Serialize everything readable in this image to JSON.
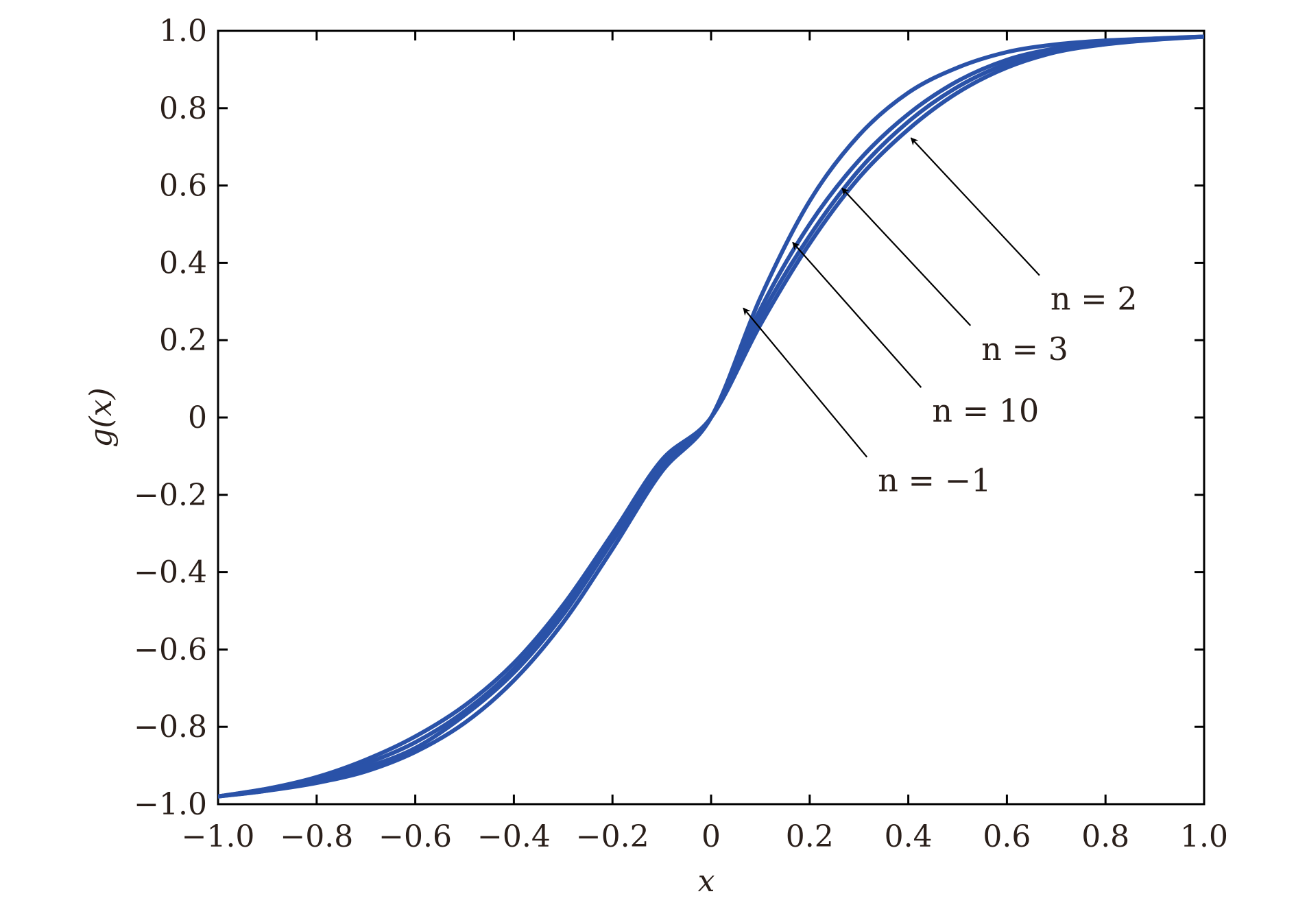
{
  "chart_data": {
    "type": "line",
    "title": "",
    "xlabel": "x",
    "ylabel": "g(x)",
    "xlim": [
      -1.0,
      1.0
    ],
    "ylim": [
      -1.0,
      1.0
    ],
    "grid": false,
    "x_ticks": [
      -1.0,
      -0.8,
      -0.6,
      -0.4,
      -0.2,
      0,
      0.2,
      0.4,
      0.6,
      0.8,
      1.0
    ],
    "x_tick_labels": [
      "−1.0",
      "−0.8",
      "−0.6",
      "−0.4",
      "−0.2",
      "0",
      "0.2",
      "0.4",
      "0.6",
      "0.8",
      "1.0"
    ],
    "y_ticks": [
      1.0,
      0.8,
      0.6,
      0.4,
      0.2,
      0,
      -0.2,
      -0.4,
      -0.6,
      -0.8,
      -1.0
    ],
    "y_tick_labels": [
      "1.0",
      "0.8",
      "0.6",
      "0.4",
      "0.2",
      "0",
      "−0.2",
      "−0.4",
      "−0.6",
      "−0.8",
      "−1.0"
    ],
    "line_color": "#2a52a8",
    "x": [
      -1.0,
      -0.9,
      -0.8,
      -0.7,
      -0.6,
      -0.5,
      -0.4,
      -0.3,
      -0.2,
      -0.1,
      0.0,
      0.1,
      0.2,
      0.3,
      0.4,
      0.5,
      0.6,
      0.7,
      0.8,
      0.9,
      1.0
    ],
    "series": [
      {
        "values": [
          -0.98,
          -0.965,
          -0.945,
          -0.915,
          -0.865,
          -0.79,
          -0.68,
          -0.53,
          -0.34,
          -0.14,
          0.0,
          0.31,
          0.56,
          0.73,
          0.84,
          0.905,
          0.945,
          0.965,
          0.975,
          0.98,
          0.985
        ]
      },
      {
        "values": [
          -0.98,
          -0.965,
          -0.94,
          -0.905,
          -0.855,
          -0.77,
          -0.66,
          -0.51,
          -0.32,
          -0.13,
          0.0,
          0.28,
          0.5,
          0.665,
          0.785,
          0.87,
          0.925,
          0.955,
          0.97,
          0.98,
          0.985
        ]
      },
      {
        "values": [
          -0.98,
          -0.96,
          -0.935,
          -0.895,
          -0.84,
          -0.76,
          -0.65,
          -0.5,
          -0.31,
          -0.12,
          0.0,
          0.26,
          0.47,
          0.64,
          0.765,
          0.855,
          0.915,
          0.95,
          0.97,
          0.978,
          0.985
        ]
      },
      {
        "values": [
          -0.98,
          -0.96,
          -0.93,
          -0.885,
          -0.825,
          -0.745,
          -0.635,
          -0.485,
          -0.3,
          -0.11,
          0.0,
          0.24,
          0.45,
          0.62,
          0.745,
          0.84,
          0.905,
          0.945,
          0.965,
          0.977,
          0.985
        ]
      }
    ],
    "annotations": [
      {
        "label": "n = 2",
        "x": 0.4,
        "y": 0.73,
        "text_x": 0.68,
        "text_y": 0.35
      },
      {
        "label": "n = 3",
        "x": 0.26,
        "y": 0.6,
        "text_x": 0.54,
        "text_y": 0.22
      },
      {
        "label": "n = 10",
        "x": 0.16,
        "y": 0.46,
        "text_x": 0.44,
        "text_y": 0.06
      },
      {
        "label": "n = −1",
        "x": 0.06,
        "y": 0.29,
        "text_x": 0.33,
        "text_y": -0.12
      }
    ]
  }
}
